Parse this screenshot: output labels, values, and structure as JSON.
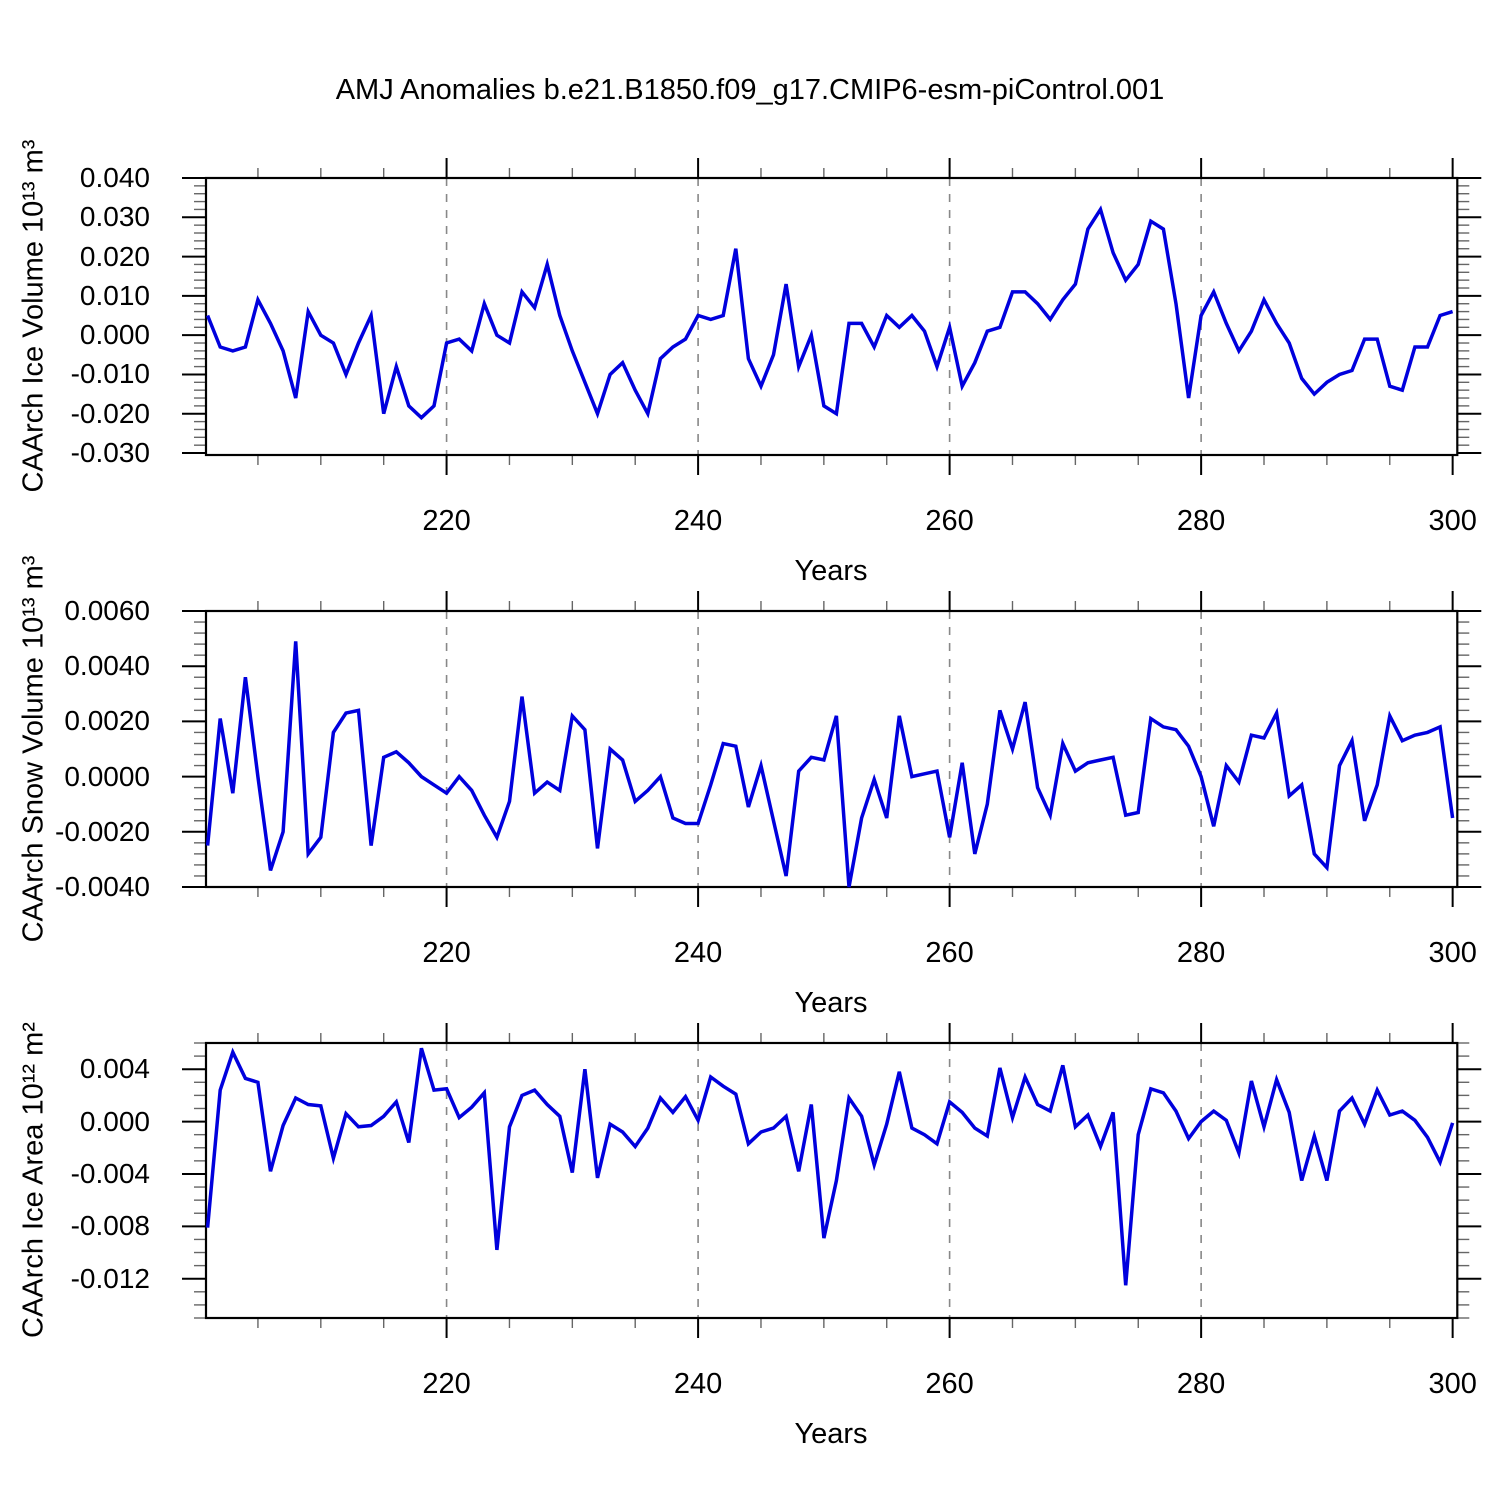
{
  "title": "AMJ Anomalies b.e21.B1850.f09_g17.CMIP6-esm-piControl.001",
  "colors": {
    "line": "#0000dd",
    "grid": "#888888",
    "axis": "#000000",
    "minor_tick": "#666666"
  },
  "chart_data": [
    {
      "type": "line",
      "name": "CAArch Ice Volume anomaly",
      "ylabel": "CAArch Ice Volume 10¹³ m³",
      "xlabel": "Years",
      "year_start": 201,
      "x_range": [
        200.87,
        300.37
      ],
      "y_range": [
        -0.0305,
        0.04
      ],
      "x_ticks": {
        "values": [
          220,
          240,
          260,
          280,
          300
        ],
        "labels": [
          "220",
          "240",
          "260",
          "280",
          "300"
        ]
      },
      "x_minor_step": 5,
      "grid_x": [
        220,
        240,
        260,
        280
      ],
      "y_ticks": {
        "values": [
          0.04,
          0.03,
          0.02,
          0.01,
          0.0,
          -0.01,
          -0.02,
          -0.03
        ],
        "labels": [
          "0.040",
          "0.030",
          "0.020",
          "0.010",
          "0.000",
          "-0.010",
          "-0.020",
          "-0.030"
        ]
      },
      "y_minor_step": 0.002,
      "values": [
        0.005,
        -0.003,
        -0.004,
        -0.003,
        0.009,
        0.003,
        -0.004,
        -0.016,
        0.006,
        0.0,
        -0.002,
        -0.01,
        -0.002,
        0.005,
        -0.02,
        -0.008,
        -0.018,
        -0.021,
        -0.018,
        -0.002,
        -0.001,
        -0.004,
        0.008,
        0.0,
        -0.002,
        0.011,
        0.007,
        0.018,
        0.005,
        -0.004,
        -0.012,
        -0.02,
        -0.01,
        -0.007,
        -0.014,
        -0.02,
        -0.006,
        -0.003,
        -0.001,
        0.005,
        0.004,
        0.005,
        0.022,
        -0.006,
        -0.013,
        -0.005,
        0.013,
        -0.008,
        0.0,
        -0.018,
        -0.02,
        0.003,
        0.003,
        -0.003,
        0.005,
        0.002,
        0.005,
        0.001,
        -0.008,
        0.002,
        -0.013,
        -0.007,
        0.001,
        0.002,
        0.011,
        0.011,
        0.008,
        0.004,
        0.009,
        0.013,
        0.027,
        0.032,
        0.021,
        0.014,
        0.018,
        0.029,
        0.027,
        0.008,
        -0.016,
        0.005,
        0.011,
        0.003,
        -0.004,
        0.001,
        0.009,
        0.003,
        -0.002,
        -0.011,
        -0.015,
        -0.012,
        -0.01,
        -0.009,
        -0.001,
        -0.001,
        -0.013,
        -0.014,
        -0.003,
        -0.003,
        0.005,
        0.006
      ]
    },
    {
      "type": "line",
      "name": "CAArch Snow Volume anomaly",
      "ylabel": "CAArch Snow Volume 10¹³ m³",
      "xlabel": "Years",
      "year_start": 201,
      "x_range": [
        200.87,
        300.37
      ],
      "y_range": [
        -0.004,
        0.006
      ],
      "x_ticks": {
        "values": [
          220,
          240,
          260,
          280,
          300
        ],
        "labels": [
          "220",
          "240",
          "260",
          "280",
          "300"
        ]
      },
      "x_minor_step": 5,
      "grid_x": [
        220,
        240,
        260,
        280
      ],
      "y_ticks": {
        "values": [
          0.006,
          0.004,
          0.002,
          0.0,
          -0.002,
          -0.004
        ],
        "labels": [
          "0.0060",
          "0.0040",
          "0.0020",
          "0.0000",
          "-0.0020",
          "-0.0040"
        ]
      },
      "y_minor_step": 0.0004,
      "values": [
        -0.0025,
        0.0021,
        -0.0006,
        0.0036,
        0.0,
        -0.0034,
        -0.002,
        0.0049,
        -0.0028,
        -0.0022,
        0.0016,
        0.0023,
        0.0024,
        -0.0025,
        0.0007,
        0.0009,
        0.0005,
        0.0,
        -0.0003,
        -0.0006,
        0.0,
        -0.0005,
        -0.0014,
        -0.0022,
        -0.0009,
        0.0029,
        -0.0006,
        -0.0002,
        -0.0005,
        0.0022,
        0.0017,
        -0.0026,
        0.001,
        0.0006,
        -0.0009,
        -0.0005,
        0.0,
        -0.0015,
        -0.0017,
        -0.0017,
        -0.0003,
        0.0012,
        0.0011,
        -0.0011,
        0.0004,
        -0.0016,
        -0.0036,
        0.0002,
        0.0007,
        0.0006,
        0.0022,
        -0.004,
        -0.0015,
        -0.0001,
        -0.0015,
        0.0022,
        0.0,
        0.0001,
        0.0002,
        -0.0022,
        0.0005,
        -0.0028,
        -0.001,
        0.0024,
        0.001,
        0.0027,
        -0.0004,
        -0.0014,
        0.0012,
        0.0002,
        0.0005,
        0.0006,
        0.0007,
        -0.0014,
        -0.0013,
        0.0021,
        0.0018,
        0.0017,
        0.0011,
        0.0,
        -0.0018,
        0.0004,
        -0.0002,
        0.0015,
        0.0014,
        0.0023,
        -0.0007,
        -0.0003,
        -0.0028,
        -0.0033,
        0.0004,
        0.0013,
        -0.0016,
        -0.0003,
        0.0022,
        0.0013,
        0.0015,
        0.0016,
        0.0018,
        -0.0015
      ]
    },
    {
      "type": "line",
      "name": "CAArch Ice Area anomaly",
      "ylabel": "CAArch Ice Area 10¹² m²",
      "xlabel": "Years",
      "year_start": 201,
      "x_range": [
        200.87,
        300.37
      ],
      "y_range": [
        -0.015,
        0.006
      ],
      "x_ticks": {
        "values": [
          220,
          240,
          260,
          280,
          300
        ],
        "labels": [
          "220",
          "240",
          "260",
          "280",
          "300"
        ]
      },
      "x_minor_step": 5,
      "grid_x": [
        220,
        240,
        260,
        280
      ],
      "y_ticks": {
        "values": [
          0.004,
          0.0,
          -0.004,
          -0.008,
          -0.012
        ],
        "labels": [
          "0.004",
          "0.000",
          "-0.004",
          "-0.008",
          "-0.012"
        ]
      },
      "y_minor_step": 0.001,
      "values": [
        -0.0081,
        0.0024,
        0.0053,
        0.0033,
        0.003,
        -0.0038,
        -0.0003,
        0.0018,
        0.0013,
        0.0012,
        -0.0028,
        0.0006,
        -0.0004,
        -0.0003,
        0.0004,
        0.0015,
        -0.0016,
        0.0056,
        0.0024,
        0.0025,
        0.0003,
        0.0011,
        0.0022,
        -0.0098,
        -0.0004,
        0.002,
        0.0024,
        0.0013,
        0.0004,
        -0.0039,
        0.004,
        -0.0043,
        -0.0002,
        -0.0008,
        -0.0019,
        -0.0005,
        0.0018,
        0.0007,
        0.0019,
        0.0001,
        0.0034,
        0.0027,
        0.0021,
        -0.0017,
        -0.0008,
        -0.0005,
        0.0004,
        -0.0038,
        0.0013,
        -0.0089,
        -0.0045,
        0.0018,
        0.0004,
        -0.0033,
        -0.0002,
        0.0038,
        -0.0005,
        -0.001,
        -0.0017,
        0.0015,
        0.0007,
        -0.0005,
        -0.0011,
        0.0041,
        0.0003,
        0.0034,
        0.0013,
        0.0008,
        0.0043,
        -0.0004,
        0.0005,
        -0.0019,
        0.0007,
        -0.0125,
        -0.001,
        0.0025,
        0.0022,
        0.0008,
        -0.0013,
        0.0,
        0.0008,
        0.0001,
        -0.0024,
        0.0031,
        -0.0004,
        0.0032,
        0.0007,
        -0.0045,
        -0.0011,
        -0.0045,
        0.0008,
        0.0018,
        -0.0002,
        0.0024,
        0.0005,
        0.0008,
        0.0001,
        -0.0012,
        -0.0031,
        -0.0001
      ]
    }
  ]
}
